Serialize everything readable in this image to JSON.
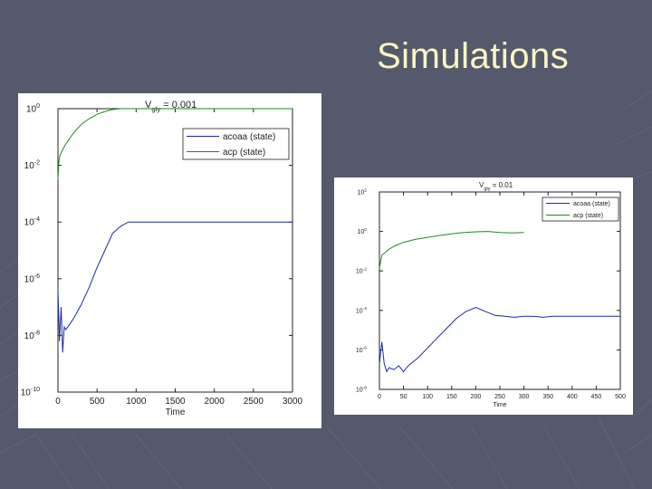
{
  "slide": {
    "title": "Simulations"
  },
  "colors": {
    "background": "#545a6b",
    "title": "#fdf6c3",
    "series_blue": "#1a2aa8",
    "series_green": "#1e8a1e"
  },
  "chart_data": [
    {
      "type": "line",
      "title": "V_gly = 0.001",
      "title_main": "V",
      "title_sub": "gly",
      "title_rest": " = 0.001",
      "xlabel": "Time",
      "ylabel": "",
      "xlim": [
        0,
        3000
      ],
      "ylim_log10": [
        -10,
        0
      ],
      "y_scale": "log",
      "xticks": [
        "0",
        "500",
        "1000",
        "1500",
        "2000",
        "2500",
        "3000"
      ],
      "ytick_base": "10",
      "ytick_exps": [
        "0",
        "-2",
        "-4",
        "-6",
        "-8",
        "-10"
      ],
      "legend": {
        "placement": "top-right",
        "entries": [
          "acoaa (state)",
          "acp (state)"
        ]
      },
      "series": [
        {
          "name": "acoaa (state)",
          "color": "#1a2aa8",
          "x": [
            0,
            20,
            40,
            60,
            80,
            100,
            150,
            200,
            300,
            400,
            500,
            600,
            700,
            800,
            900,
            1000,
            2000,
            3000
          ],
          "log10_y": [
            -6.4,
            -8.2,
            -7.0,
            -8.6,
            -7.7,
            -7.8,
            -7.6,
            -7.4,
            -6.9,
            -6.3,
            -5.6,
            -5.0,
            -4.4,
            -4.15,
            -4.0,
            -4.0,
            -4.0,
            -4.0
          ]
        },
        {
          "name": "acp (state)",
          "color": "#1e8a1e",
          "x": [
            0,
            10,
            20,
            50,
            100,
            200,
            300,
            400,
            500,
            600,
            700,
            800,
            1000,
            2000,
            3000
          ],
          "log10_y": [
            -2.5,
            -1.9,
            -1.7,
            -1.5,
            -1.25,
            -0.85,
            -0.55,
            -0.35,
            -0.2,
            -0.1,
            -0.03,
            0,
            0,
            0,
            0
          ]
        }
      ]
    },
    {
      "type": "line",
      "title": "V_gly = 0.01",
      "title_main": "V",
      "title_sub": "gly",
      "title_rest": " = 0.01",
      "xlabel": "Time",
      "ylabel": "",
      "xlim": [
        0,
        500
      ],
      "ylim_log10": [
        -8,
        2
      ],
      "y_scale": "log",
      "xticks": [
        "0",
        "50",
        "100",
        "150",
        "200",
        "250",
        "300",
        "350",
        "400",
        "450",
        "500"
      ],
      "ytick_base": "10",
      "ytick_exps": [
        "2",
        "0",
        "-2",
        "-4",
        "-6",
        "-8"
      ],
      "legend": {
        "placement": "top-right",
        "entries": [
          "acoaa (state)",
          "acp (state)"
        ]
      },
      "series": [
        {
          "name": "acoaa (state)",
          "color": "#1a2aa8",
          "x": [
            0,
            5,
            10,
            15,
            20,
            30,
            40,
            50,
            60,
            80,
            100,
            120,
            140,
            160,
            180,
            200,
            220,
            240,
            260,
            280,
            300,
            320,
            340,
            360,
            380,
            400,
            420,
            440,
            460,
            480,
            500
          ],
          "log10_y": [
            -6.7,
            -5.6,
            -6.7,
            -7.1,
            -6.9,
            -7.0,
            -6.8,
            -7.1,
            -6.8,
            -6.4,
            -5.9,
            -5.4,
            -4.9,
            -4.4,
            -4.05,
            -3.85,
            -4.05,
            -4.25,
            -4.3,
            -4.35,
            -4.3,
            -4.3,
            -4.35,
            -4.3,
            -4.3,
            -4.3,
            -4.3,
            -4.3,
            -4.3,
            -4.3,
            -4.3
          ]
        },
        {
          "name": "acp (state)",
          "color": "#1e8a1e",
          "x": [
            0,
            5,
            10,
            20,
            30,
            50,
            75,
            100,
            125,
            150,
            175,
            200,
            225,
            250,
            275,
            300
          ],
          "log10_y": [
            -1.85,
            -1.2,
            -1.1,
            -0.9,
            -0.75,
            -0.55,
            -0.4,
            -0.3,
            -0.2,
            -0.12,
            -0.05,
            -0.02,
            0.0,
            -0.05,
            -0.08,
            -0.05
          ]
        }
      ]
    }
  ]
}
